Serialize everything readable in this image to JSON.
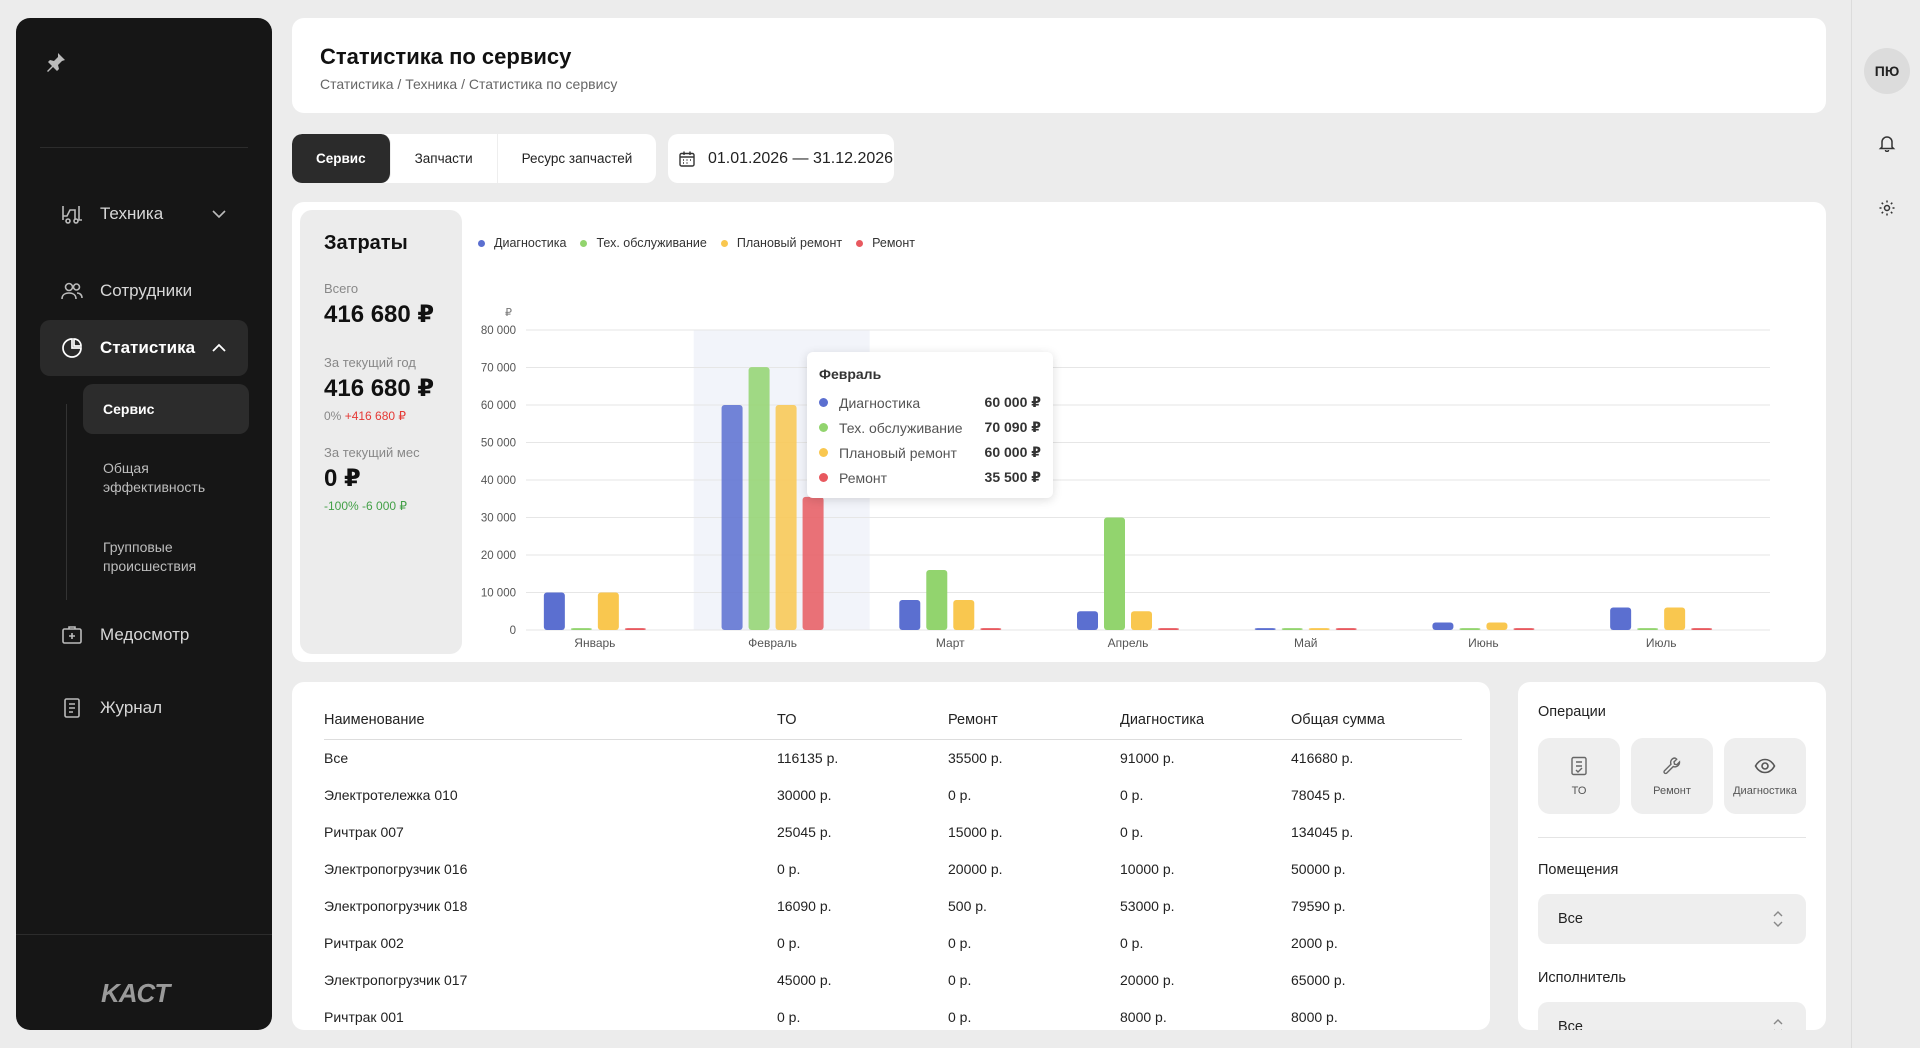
{
  "sidebar": {
    "items": [
      {
        "label": "Техника"
      },
      {
        "label": "Сотрудники"
      },
      {
        "label": "Статистика"
      },
      {
        "label": "Медосмотр"
      },
      {
        "label": "Журнал"
      }
    ],
    "sub_items": [
      {
        "label": "Сервис"
      },
      {
        "label": "Общая эффективность"
      },
      {
        "label": "Групповые происшествия"
      }
    ],
    "logo": "KACT"
  },
  "user": {
    "initials": "ПЮ"
  },
  "header": {
    "title": "Статистика по сервису",
    "breadcrumb": "Статистика / Техника / Статистика по сервису"
  },
  "tabs": [
    "Сервис",
    "Запчасти",
    "Ресурс запчастей"
  ],
  "date_range": "01.01.2026 — 31.12.2026",
  "costs": {
    "title": "Затраты",
    "total_label": "Всего",
    "total_value": "416 680 ₽",
    "year_label": "За текущий год",
    "year_value": "416 680 ₽",
    "year_delta_pct": "0%",
    "year_delta_abs": "+416 680 ₽",
    "month_label": "За текущий мес",
    "month_value": "0 ₽",
    "month_delta": "-100% -6 000 ₽"
  },
  "colors": {
    "diagnostics": "#5b6fd0",
    "maintenance": "#92d46e",
    "planned": "#f9c74f",
    "repair": "#e8595f"
  },
  "chart_data": {
    "type": "bar",
    "ylabel": "₽",
    "ylim": [
      0,
      80000
    ],
    "yticks": [
      "80 000",
      "70 000",
      "60 000",
      "50 000",
      "40 000",
      "30 000",
      "20 000",
      "10 000",
      "0"
    ],
    "categories": [
      "Январь",
      "Февраль",
      "Март",
      "Апрель",
      "Май",
      "Июнь",
      "Июль"
    ],
    "series": [
      {
        "name": "Диагностика",
        "color": "#5b6fd0",
        "values": [
          10000,
          60000,
          8000,
          5000,
          500,
          2000,
          6000
        ]
      },
      {
        "name": "Тех. обслуживание",
        "color": "#92d46e",
        "values": [
          500,
          70090,
          16000,
          30000,
          500,
          500,
          500
        ]
      },
      {
        "name": "Плановый ремонт",
        "color": "#f9c74f",
        "values": [
          10000,
          60000,
          8000,
          5000,
          500,
          2000,
          6000
        ]
      },
      {
        "name": "Ремонт",
        "color": "#e8595f",
        "values": [
          500,
          35500,
          500,
          500,
          500,
          500,
          500
        ]
      }
    ],
    "highlight_index": 1,
    "legend_position": "top-left"
  },
  "tooltip": {
    "title": "Февраль",
    "rows": [
      {
        "name": "Диагностика",
        "value": "60 000 ₽",
        "color": "#5b6fd0"
      },
      {
        "name": "Тех. обслуживание",
        "value": "70 090 ₽",
        "color": "#92d46e"
      },
      {
        "name": "Плановый ремонт",
        "value": "60 000 ₽",
        "color": "#f9c74f"
      },
      {
        "name": "Ремонт",
        "value": "35 500 ₽",
        "color": "#e8595f"
      }
    ]
  },
  "table": {
    "headers": [
      "Наименование",
      "ТО",
      "Ремонт",
      "Диагностика",
      "Общая сумма"
    ],
    "rows": [
      [
        "Все",
        "116135 р.",
        "35500 р.",
        "91000 р.",
        "416680 р."
      ],
      [
        "Электротележка 010",
        "30000 р.",
        "0 р.",
        "0 р.",
        "78045 р."
      ],
      [
        "Ричтрак 007",
        "25045 р.",
        "15000 р.",
        "0 р.",
        "134045 р."
      ],
      [
        "Электропогрузчик 016",
        "0 р.",
        "20000 р.",
        "10000 р.",
        "50000 р."
      ],
      [
        "Электропогрузчик 018",
        "16090 р.",
        "500 р.",
        "53000 р.",
        "79590 р."
      ],
      [
        "Ричтрак 002",
        "0 р.",
        "0 р.",
        "0 р.",
        "2000 р."
      ],
      [
        "Электропогрузчик 017",
        "45000 р.",
        "0 р.",
        "20000 р.",
        "65000 р."
      ],
      [
        "Ричтрак 001",
        "0 р.",
        "0 р.",
        "8000 р.",
        "8000 р."
      ]
    ]
  },
  "filters": {
    "operations_label": "Операции",
    "operations": [
      {
        "label": "ТО",
        "icon": "checklist-icon"
      },
      {
        "label": "Ремонт",
        "icon": "wrench-icon"
      },
      {
        "label": "Диагностика",
        "icon": "eye-icon"
      }
    ],
    "rooms_label": "Помещения",
    "rooms_value": "Все",
    "executor_label": "Исполнитель",
    "executor_value": "Все"
  }
}
